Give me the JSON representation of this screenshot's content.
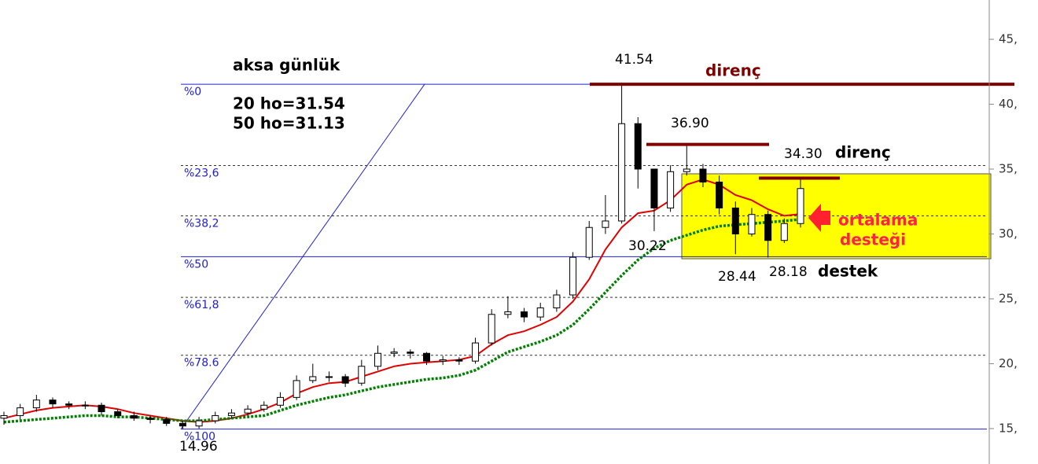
{
  "chart_data": {
    "type": "candlestick",
    "title": "aksa günlük",
    "ma_labels": [
      "20 ho=31.54",
      "50 ho=31.13"
    ],
    "ylim": [
      12.27,
      48.03
    ],
    "yticks": [
      {
        "value": 15,
        "label": "15,"
      },
      {
        "value": 20,
        "label": "20,"
      },
      {
        "value": 25,
        "label": "25,"
      },
      {
        "value": 30,
        "label": "30,"
      },
      {
        "value": 35,
        "label": "35,"
      },
      {
        "value": 40,
        "label": "40,"
      },
      {
        "value": 45,
        "label": "45,"
      }
    ],
    "open": [
      15.8,
      16.0,
      16.6,
      17.2,
      16.9,
      16.8,
      16.8,
      16.3,
      16.0,
      15.8,
      15.7,
      15.4,
      15.2,
      15.6,
      16.0,
      16.2,
      16.5,
      16.8,
      17.4,
      18.7,
      19.0,
      19.0,
      18.5,
      19.8,
      20.8,
      20.9,
      20.8,
      20.2,
      20.3,
      20.2,
      21.6,
      23.8,
      24.0,
      23.6,
      24.3,
      25.3,
      28.2,
      30.5,
      31.0,
      38.5,
      35.0,
      32.0,
      34.8,
      35.0,
      34.0,
      32.0,
      30.0,
      31.5,
      29.5,
      30.8
    ],
    "high": [
      16.3,
      16.9,
      17.6,
      17.4,
      17.1,
      17.1,
      17.0,
      16.5,
      16.3,
      16.0,
      15.9,
      15.6,
      15.9,
      16.3,
      16.5,
      16.8,
      17.1,
      17.8,
      19.1,
      20.0,
      19.4,
      19.2,
      20.3,
      21.4,
      21.2,
      21.1,
      20.9,
      20.6,
      20.5,
      22.0,
      24.2,
      25.2,
      24.3,
      24.7,
      25.7,
      28.6,
      31.0,
      33.0,
      41.54,
      39.0,
      35.0,
      35.3,
      36.9,
      35.4,
      34.5,
      32.5,
      32.0,
      31.8,
      31.2,
      34.3
    ],
    "low": [
      15.3,
      15.7,
      16.3,
      16.6,
      16.5,
      16.5,
      16.0,
      15.8,
      15.6,
      15.4,
      15.2,
      14.96,
      15.0,
      15.4,
      15.8,
      16.0,
      16.3,
      16.6,
      17.2,
      18.5,
      18.6,
      18.2,
      18.3,
      19.5,
      20.5,
      20.4,
      19.9,
      19.9,
      19.9,
      20.0,
      21.4,
      23.5,
      23.2,
      23.3,
      24.0,
      25.0,
      28.0,
      30.0,
      30.8,
      33.5,
      30.22,
      31.7,
      34.5,
      33.6,
      31.5,
      28.44,
      29.8,
      28.18,
      29.3,
      30.5
    ],
    "close": [
      16.0,
      16.6,
      17.2,
      16.9,
      16.8,
      16.8,
      16.3,
      16.0,
      15.8,
      15.7,
      15.4,
      15.2,
      15.6,
      16.0,
      16.2,
      16.5,
      16.8,
      17.4,
      18.7,
      19.0,
      19.0,
      18.5,
      19.8,
      20.8,
      20.9,
      20.8,
      20.2,
      20.3,
      20.2,
      21.6,
      23.8,
      24.0,
      23.6,
      24.3,
      25.3,
      28.2,
      30.5,
      31.0,
      38.5,
      35.0,
      32.0,
      34.8,
      35.0,
      34.0,
      32.0,
      30.0,
      31.5,
      29.5,
      30.8,
      33.5
    ],
    "series": [
      {
        "color": "#e00000",
        "style": "solid",
        "values": [
          15.8,
          16.1,
          16.4,
          16.6,
          16.7,
          16.8,
          16.7,
          16.5,
          16.2,
          16.0,
          15.8,
          15.6,
          15.5,
          15.6,
          15.8,
          16.1,
          16.5,
          17.0,
          17.7,
          18.2,
          18.5,
          18.6,
          19.0,
          19.4,
          19.8,
          20.0,
          20.1,
          20.2,
          20.3,
          20.6,
          21.5,
          22.2,
          22.5,
          23.0,
          23.6,
          24.8,
          26.5,
          28.8,
          30.5,
          31.6,
          31.8,
          32.6,
          33.8,
          34.2,
          33.8,
          33.0,
          32.6,
          31.9,
          31.4,
          31.54
        ]
      },
      {
        "color": "#008000",
        "style": "dotted",
        "values": [
          15.5,
          15.6,
          15.7,
          15.8,
          15.9,
          16.0,
          16.0,
          15.9,
          15.9,
          15.8,
          15.7,
          15.6,
          15.6,
          15.7,
          15.8,
          15.9,
          16.0,
          16.4,
          16.8,
          17.1,
          17.4,
          17.6,
          17.9,
          18.2,
          18.4,
          18.6,
          18.8,
          18.9,
          19.1,
          19.5,
          20.2,
          20.9,
          21.3,
          21.7,
          22.2,
          23.0,
          24.2,
          25.5,
          26.8,
          28.0,
          28.9,
          29.5,
          29.9,
          30.3,
          30.6,
          30.7,
          30.8,
          30.9,
          31.0,
          31.13
        ]
      }
    ],
    "fib_color": "#2020d0",
    "fib_levels": [
      {
        "value": 41.54,
        "label": "%0",
        "style": "solid"
      },
      {
        "value": 35.27,
        "label": "%23,6",
        "style": "dashed"
      },
      {
        "value": 31.39,
        "label": "%38,2",
        "style": "dashed"
      },
      {
        "value": 28.25,
        "label": "%50",
        "style": "solid"
      },
      {
        "value": 25.11,
        "label": "%61,8",
        "style": "dashed"
      },
      {
        "value": 20.65,
        "label": "%78.6",
        "style": "dashed"
      },
      {
        "value": 14.96,
        "label": "%100",
        "style": "solid"
      }
    ],
    "resistance_color": "#800000",
    "resistance_lines": [
      41.54,
      36.9,
      34.3
    ],
    "annotations": {
      "high": "41.54",
      "peak2": "36.90",
      "peak3": "34.30",
      "low1": "30.22",
      "low2": "28.44",
      "low3": "28.18",
      "start": "14.96",
      "resistance1": "direnç",
      "resistance2": "direnç",
      "support": "destek",
      "ma_support": [
        "ortalama",
        "desteği"
      ]
    }
  }
}
